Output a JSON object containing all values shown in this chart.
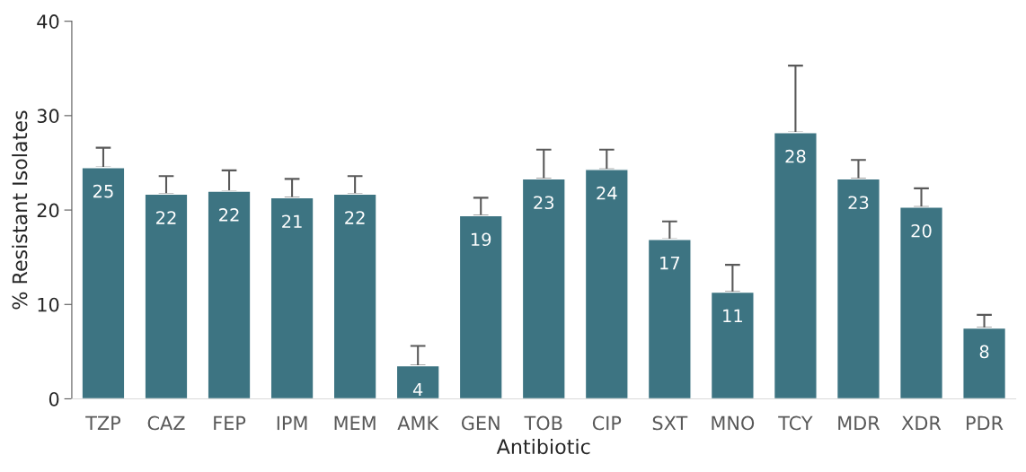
{
  "chart_data": {
    "type": "bar",
    "xlabel": "Antibiotic",
    "ylabel": "% Resistant Isolates",
    "categories": [
      "TZP",
      "CAZ",
      "FEP",
      "IPM",
      "MEM",
      "AMK",
      "GEN",
      "TOB",
      "CIP",
      "SXT",
      "MNO",
      "TCY",
      "MDR",
      "XDR",
      "PDR"
    ],
    "values": [
      24.5,
      21.7,
      22.0,
      21.3,
      21.7,
      3.5,
      19.4,
      23.3,
      24.3,
      16.9,
      11.3,
      28.2,
      23.3,
      20.3,
      7.5
    ],
    "errors": [
      [
        24.5,
        26.6
      ],
      [
        21.7,
        23.6
      ],
      [
        22.0,
        24.2
      ],
      [
        21.3,
        23.3
      ],
      [
        21.7,
        23.6
      ],
      [
        3.5,
        5.6
      ],
      [
        19.4,
        21.3
      ],
      [
        23.3,
        26.4
      ],
      [
        24.3,
        26.4
      ],
      [
        16.9,
        18.8
      ],
      [
        11.3,
        14.2
      ],
      [
        28.2,
        35.3
      ],
      [
        23.3,
        25.3
      ],
      [
        20.3,
        22.3
      ],
      [
        7.5,
        8.9
      ]
    ],
    "value_labels": [
      "25",
      "22",
      "22",
      "21",
      "22",
      "4",
      "19",
      "23",
      "24",
      "17",
      "11",
      "28",
      "23",
      "20",
      "8"
    ],
    "color": "#3d7482",
    "ylim": [
      0,
      40
    ],
    "yticks": [
      0,
      10,
      20,
      30,
      40
    ],
    "grid": false
  }
}
